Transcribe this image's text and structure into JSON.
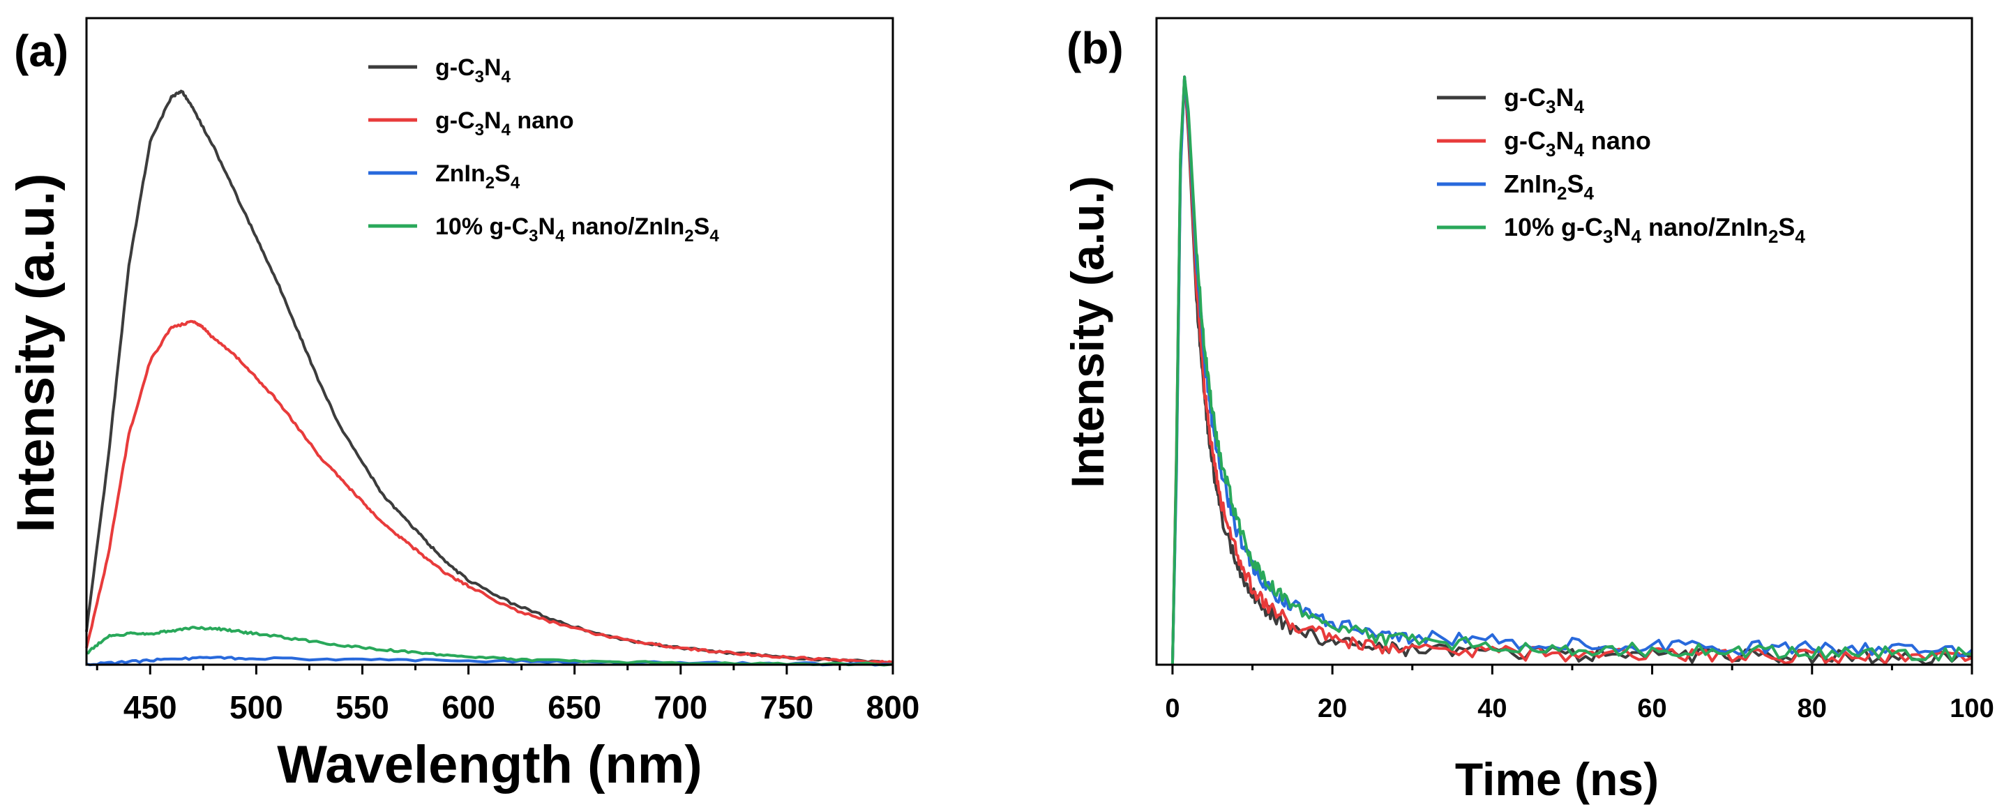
{
  "colors": {
    "g_C3N4": "#3c3c3c",
    "g_C3N4_nano": "#e83b3b",
    "ZnIn2S4": "#2869dc",
    "composite": "#29a85a"
  },
  "chart_data": [
    {
      "type": "line",
      "panel_label": "(a)",
      "xlabel": "Wavelength (nm)",
      "ylabel": "Intensity (a.u.)",
      "xlim": [
        420,
        800
      ],
      "ylim": [
        0,
        1.15
      ],
      "x_ticks": [
        "450",
        "500",
        "550",
        "600",
        "650",
        "700",
        "750",
        "800"
      ],
      "legend_position": "top-right",
      "series": [
        {
          "key": "g_C3N4",
          "legend": {
            "base": "g-C",
            "sub1": "3",
            "mid1": "N",
            "sub2": "4",
            "mid2": "",
            "sub3": "",
            "tail": ""
          },
          "x": [
            420,
            430,
            440,
            450,
            460,
            465,
            470,
            480,
            490,
            500,
            510,
            520,
            530,
            540,
            550,
            560,
            570,
            580,
            590,
            600,
            620,
            640,
            660,
            680,
            700,
            720,
            740,
            760,
            780,
            800
          ],
          "y": [
            0.06,
            0.36,
            0.71,
            0.93,
            1.01,
            1.02,
            0.99,
            0.92,
            0.84,
            0.76,
            0.68,
            0.59,
            0.5,
            0.42,
            0.36,
            0.3,
            0.26,
            0.22,
            0.18,
            0.15,
            0.11,
            0.08,
            0.055,
            0.04,
            0.03,
            0.022,
            0.016,
            0.011,
            0.007,
            0.004
          ]
        },
        {
          "key": "g_C3N4_nano",
          "legend": {
            "base": "g-C",
            "sub1": "3",
            "mid1": "N",
            "sub2": "4",
            "mid2": " nano",
            "sub3": "",
            "tail": ""
          },
          "x": [
            420,
            430,
            440,
            450,
            460,
            470,
            475,
            480,
            490,
            500,
            510,
            520,
            530,
            540,
            550,
            560,
            570,
            580,
            590,
            600,
            620,
            640,
            660,
            680,
            700,
            720,
            740,
            760,
            780,
            800
          ],
          "y": [
            0.03,
            0.19,
            0.41,
            0.54,
            0.6,
            0.61,
            0.6,
            0.58,
            0.55,
            0.51,
            0.47,
            0.42,
            0.37,
            0.33,
            0.29,
            0.25,
            0.22,
            0.19,
            0.16,
            0.14,
            0.1,
            0.075,
            0.055,
            0.04,
            0.03,
            0.022,
            0.016,
            0.011,
            0.007,
            0.004
          ]
        },
        {
          "key": "ZnIn2S4",
          "legend": {
            "base": "ZnIn",
            "sub1": "2",
            "mid1": "S",
            "sub2": "4",
            "mid2": "",
            "sub3": "",
            "tail": ""
          },
          "x": [
            420,
            440,
            460,
            480,
            500,
            550,
            600,
            650,
            700,
            750,
            800
          ],
          "y": [
            0.0,
            0.005,
            0.01,
            0.012,
            0.011,
            0.009,
            0.007,
            0.005,
            0.003,
            0.002,
            0.001
          ]
        },
        {
          "key": "composite",
          "legend": {
            "base": "10% g-C",
            "sub1": "3",
            "mid1": "N",
            "sub2": "4",
            "mid2": " nano/ZnIn",
            "sub3": "2",
            "tail": "S",
            "sub4": "4"
          },
          "x": [
            420,
            430,
            440,
            450,
            460,
            470,
            480,
            490,
            500,
            520,
            540,
            560,
            580,
            600,
            620,
            650,
            700,
            750,
            800
          ],
          "y": [
            0.02,
            0.05,
            0.055,
            0.055,
            0.06,
            0.065,
            0.065,
            0.06,
            0.055,
            0.045,
            0.035,
            0.027,
            0.02,
            0.014,
            0.01,
            0.006,
            0.003,
            0.002,
            0.001
          ]
        }
      ]
    },
    {
      "type": "line",
      "panel_label": "(b)",
      "xlabel": "Time (ns)",
      "ylabel": "Intensity (a.u.)",
      "xlim": [
        -2,
        100
      ],
      "ylim": [
        0,
        1.1
      ],
      "x_ticks": [
        "0",
        "20",
        "40",
        "60",
        "80",
        "100"
      ],
      "legend_position": "top-right",
      "series": [
        {
          "key": "g_C3N4",
          "legend": {
            "base": "g-C",
            "sub1": "3",
            "mid1": "N",
            "sub2": "4",
            "mid2": "",
            "sub3": "",
            "tail": ""
          },
          "x": [
            0,
            0.5,
            1,
            1.5,
            2,
            3,
            4,
            5,
            6,
            8,
            10,
            12,
            15,
            20,
            25,
            30,
            40,
            50,
            60,
            70,
            80,
            90,
            100
          ],
          "y": [
            0.0,
            0.35,
            0.85,
            1.0,
            0.9,
            0.62,
            0.45,
            0.34,
            0.26,
            0.17,
            0.12,
            0.09,
            0.06,
            0.04,
            0.03,
            0.025,
            0.02,
            0.018,
            0.016,
            0.015,
            0.014,
            0.013,
            0.012
          ]
        },
        {
          "key": "g_C3N4_nano",
          "legend": {
            "base": "g-C",
            "sub1": "3",
            "mid1": "N",
            "sub2": "4",
            "mid2": " nano",
            "sub3": "",
            "tail": ""
          },
          "x": [
            0,
            0.5,
            1,
            1.5,
            2,
            3,
            4,
            5,
            6,
            8,
            10,
            12,
            15,
            20,
            25,
            30,
            40,
            50,
            60,
            70,
            80,
            90,
            100
          ],
          "y": [
            0.0,
            0.37,
            0.86,
            1.0,
            0.91,
            0.64,
            0.47,
            0.36,
            0.28,
            0.19,
            0.13,
            0.1,
            0.07,
            0.045,
            0.032,
            0.026,
            0.02,
            0.017,
            0.016,
            0.015,
            0.014,
            0.013,
            0.012
          ]
        },
        {
          "key": "ZnIn2S4",
          "legend": {
            "base": "ZnIn",
            "sub1": "2",
            "mid1": "S",
            "sub2": "4",
            "mid2": "",
            "sub3": "",
            "tail": ""
          },
          "x": [
            0,
            0.5,
            1,
            1.5,
            2,
            3,
            4,
            5,
            6,
            8,
            10,
            12,
            15,
            20,
            25,
            30,
            40,
            50,
            60,
            70,
            80,
            90,
            100
          ],
          "y": [
            0.0,
            0.33,
            0.84,
            1.0,
            0.93,
            0.68,
            0.52,
            0.41,
            0.33,
            0.23,
            0.17,
            0.13,
            0.1,
            0.07,
            0.055,
            0.047,
            0.04,
            0.035,
            0.032,
            0.03,
            0.028,
            0.026,
            0.025
          ]
        },
        {
          "key": "composite",
          "legend": {
            "base": "10% g-C",
            "sub1": "3",
            "mid1": "N",
            "sub2": "4",
            "mid2": " nano/ZnIn",
            "sub3": "2",
            "tail": "S",
            "sub4": "4"
          },
          "x": [
            0,
            0.5,
            1,
            1.5,
            2,
            3,
            4,
            5,
            6,
            8,
            10,
            12,
            15,
            20,
            25,
            30,
            40,
            50,
            60,
            70,
            80,
            90,
            100
          ],
          "y": [
            0.0,
            0.36,
            0.87,
            1.0,
            0.94,
            0.7,
            0.54,
            0.43,
            0.35,
            0.25,
            0.18,
            0.14,
            0.1,
            0.065,
            0.048,
            0.04,
            0.032,
            0.027,
            0.024,
            0.022,
            0.02,
            0.019,
            0.018
          ]
        }
      ]
    }
  ]
}
